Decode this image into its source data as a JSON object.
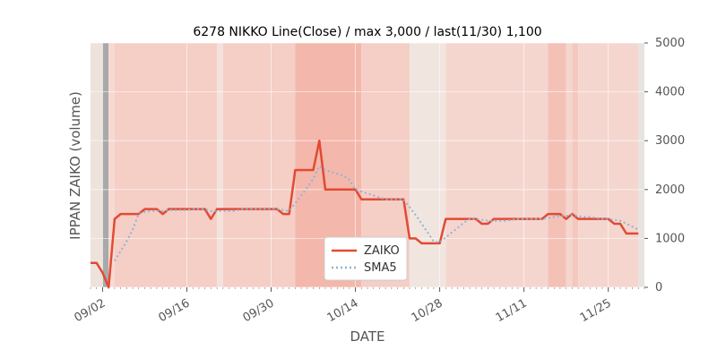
{
  "chart_data": {
    "type": "line",
    "title": "6278 NIKKO Line(Close) / max 3,000 / last(11/30) 1,100",
    "xlabel": "DATE",
    "ylabel": "IPPAN ZAIKO (volume)",
    "ylim": [
      0,
      5000
    ],
    "yticks": [
      "0",
      "1000",
      "2000",
      "3000",
      "4000",
      "5000"
    ],
    "y_axis_side": "right",
    "grid": true,
    "legend_position": "lower-center",
    "x_range": [
      "2024-08-31",
      "2024-12-01"
    ],
    "xticks": [
      {
        "date": "2024-09-02",
        "label": "09/02"
      },
      {
        "date": "2024-09-16",
        "label": "09/16"
      },
      {
        "date": "2024-09-30",
        "label": "09/30"
      },
      {
        "date": "2024-10-14",
        "label": "10/14"
      },
      {
        "date": "2024-10-28",
        "label": "10/28"
      },
      {
        "date": "2024-11-11",
        "label": "11/11"
      },
      {
        "date": "2024-11-25",
        "label": "11/25"
      }
    ],
    "series": [
      {
        "name": "ZAIKO",
        "color": "#e24a33",
        "style": "solid",
        "points": [
          [
            "2024-08-31",
            500
          ],
          [
            "2024-09-01",
            500
          ],
          [
            "2024-09-02",
            300
          ],
          [
            "2024-09-03",
            0
          ],
          [
            "2024-09-04",
            1400
          ],
          [
            "2024-09-05",
            1500
          ],
          [
            "2024-09-06",
            1500
          ],
          [
            "2024-09-07",
            1500
          ],
          [
            "2024-09-08",
            1500
          ],
          [
            "2024-09-09",
            1600
          ],
          [
            "2024-09-10",
            1600
          ],
          [
            "2024-09-11",
            1600
          ],
          [
            "2024-09-12",
            1500
          ],
          [
            "2024-09-13",
            1600
          ],
          [
            "2024-09-14",
            1600
          ],
          [
            "2024-09-15",
            1600
          ],
          [
            "2024-09-16",
            1600
          ],
          [
            "2024-09-17",
            1600
          ],
          [
            "2024-09-18",
            1600
          ],
          [
            "2024-09-19",
            1600
          ],
          [
            "2024-09-20",
            1400
          ],
          [
            "2024-09-21",
            1600
          ],
          [
            "2024-09-22",
            1600
          ],
          [
            "2024-09-23",
            1600
          ],
          [
            "2024-09-24",
            1600
          ],
          [
            "2024-09-25",
            1600
          ],
          [
            "2024-09-26",
            1600
          ],
          [
            "2024-09-27",
            1600
          ],
          [
            "2024-09-28",
            1600
          ],
          [
            "2024-09-29",
            1600
          ],
          [
            "2024-09-30",
            1600
          ],
          [
            "2024-10-01",
            1600
          ],
          [
            "2024-10-02",
            1500
          ],
          [
            "2024-10-03",
            1500
          ],
          [
            "2024-10-04",
            2400
          ],
          [
            "2024-10-05",
            2400
          ],
          [
            "2024-10-06",
            2400
          ],
          [
            "2024-10-07",
            2400
          ],
          [
            "2024-10-08",
            3000
          ],
          [
            "2024-10-09",
            2000
          ],
          [
            "2024-10-10",
            2000
          ],
          [
            "2024-10-11",
            2000
          ],
          [
            "2024-10-12",
            2000
          ],
          [
            "2024-10-13",
            2000
          ],
          [
            "2024-10-14",
            2000
          ],
          [
            "2024-10-15",
            1800
          ],
          [
            "2024-10-16",
            1800
          ],
          [
            "2024-10-17",
            1800
          ],
          [
            "2024-10-18",
            1800
          ],
          [
            "2024-10-19",
            1800
          ],
          [
            "2024-10-20",
            1800
          ],
          [
            "2024-10-21",
            1800
          ],
          [
            "2024-10-22",
            1800
          ],
          [
            "2024-10-23",
            1000
          ],
          [
            "2024-10-24",
            1000
          ],
          [
            "2024-10-25",
            900
          ],
          [
            "2024-10-26",
            900
          ],
          [
            "2024-10-27",
            900
          ],
          [
            "2024-10-28",
            900
          ],
          [
            "2024-10-29",
            1400
          ],
          [
            "2024-10-30",
            1400
          ],
          [
            "2024-10-31",
            1400
          ],
          [
            "2024-11-01",
            1400
          ],
          [
            "2024-11-02",
            1400
          ],
          [
            "2024-11-03",
            1400
          ],
          [
            "2024-11-04",
            1300
          ],
          [
            "2024-11-05",
            1300
          ],
          [
            "2024-11-06",
            1400
          ],
          [
            "2024-11-07",
            1400
          ],
          [
            "2024-11-08",
            1400
          ],
          [
            "2024-11-09",
            1400
          ],
          [
            "2024-11-10",
            1400
          ],
          [
            "2024-11-11",
            1400
          ],
          [
            "2024-11-12",
            1400
          ],
          [
            "2024-11-13",
            1400
          ],
          [
            "2024-11-14",
            1400
          ],
          [
            "2024-11-15",
            1500
          ],
          [
            "2024-11-16",
            1500
          ],
          [
            "2024-11-17",
            1500
          ],
          [
            "2024-11-18",
            1400
          ],
          [
            "2024-11-19",
            1500
          ],
          [
            "2024-11-20",
            1400
          ],
          [
            "2024-11-21",
            1400
          ],
          [
            "2024-11-22",
            1400
          ],
          [
            "2024-11-23",
            1400
          ],
          [
            "2024-11-24",
            1400
          ],
          [
            "2024-11-25",
            1400
          ],
          [
            "2024-11-26",
            1300
          ],
          [
            "2024-11-27",
            1300
          ],
          [
            "2024-11-28",
            1100
          ],
          [
            "2024-11-29",
            1100
          ],
          [
            "2024-11-30",
            1100
          ]
        ]
      },
      {
        "name": "SMA5",
        "color": "#8eb4d4",
        "style": "dotted",
        "points": [
          [
            "2024-09-04",
            540
          ],
          [
            "2024-09-05",
            740
          ],
          [
            "2024-09-06",
            940
          ],
          [
            "2024-09-07",
            1180
          ],
          [
            "2024-09-08",
            1500
          ],
          [
            "2024-09-09",
            1540
          ],
          [
            "2024-09-10",
            1560
          ],
          [
            "2024-09-11",
            1560
          ],
          [
            "2024-09-12",
            1560
          ],
          [
            "2024-09-13",
            1580
          ],
          [
            "2024-09-14",
            1580
          ],
          [
            "2024-09-15",
            1580
          ],
          [
            "2024-09-16",
            1580
          ],
          [
            "2024-09-17",
            1600
          ],
          [
            "2024-09-18",
            1600
          ],
          [
            "2024-09-19",
            1600
          ],
          [
            "2024-09-20",
            1560
          ],
          [
            "2024-09-21",
            1560
          ],
          [
            "2024-09-22",
            1560
          ],
          [
            "2024-09-23",
            1560
          ],
          [
            "2024-09-24",
            1560
          ],
          [
            "2024-09-25",
            1600
          ],
          [
            "2024-09-26",
            1600
          ],
          [
            "2024-09-27",
            1600
          ],
          [
            "2024-09-28",
            1600
          ],
          [
            "2024-09-29",
            1600
          ],
          [
            "2024-09-30",
            1600
          ],
          [
            "2024-10-01",
            1600
          ],
          [
            "2024-10-02",
            1580
          ],
          [
            "2024-10-03",
            1560
          ],
          [
            "2024-10-04",
            1720
          ],
          [
            "2024-10-05",
            1880
          ],
          [
            "2024-10-06",
            2040
          ],
          [
            "2024-10-07",
            2220
          ],
          [
            "2024-10-08",
            2480
          ],
          [
            "2024-10-09",
            2400
          ],
          [
            "2024-10-10",
            2360
          ],
          [
            "2024-10-11",
            2320
          ],
          [
            "2024-10-12",
            2280
          ],
          [
            "2024-10-13",
            2200
          ],
          [
            "2024-10-14",
            2000
          ],
          [
            "2024-10-15",
            1960
          ],
          [
            "2024-10-16",
            1920
          ],
          [
            "2024-10-17",
            1880
          ],
          [
            "2024-10-18",
            1840
          ],
          [
            "2024-10-19",
            1800
          ],
          [
            "2024-10-20",
            1800
          ],
          [
            "2024-10-21",
            1800
          ],
          [
            "2024-10-22",
            1800
          ],
          [
            "2024-10-23",
            1640
          ],
          [
            "2024-10-24",
            1480
          ],
          [
            "2024-10-25",
            1300
          ],
          [
            "2024-10-26",
            1120
          ],
          [
            "2024-10-27",
            940
          ],
          [
            "2024-10-28",
            920
          ],
          [
            "2024-10-29",
            1020
          ],
          [
            "2024-10-30",
            1120
          ],
          [
            "2024-10-31",
            1220
          ],
          [
            "2024-11-01",
            1320
          ],
          [
            "2024-11-02",
            1400
          ],
          [
            "2024-11-03",
            1400
          ],
          [
            "2024-11-04",
            1380
          ],
          [
            "2024-11-05",
            1360
          ],
          [
            "2024-11-06",
            1360
          ],
          [
            "2024-11-07",
            1360
          ],
          [
            "2024-11-08",
            1360
          ],
          [
            "2024-11-09",
            1380
          ],
          [
            "2024-11-10",
            1400
          ],
          [
            "2024-11-11",
            1400
          ],
          [
            "2024-11-12",
            1400
          ],
          [
            "2024-11-13",
            1400
          ],
          [
            "2024-11-14",
            1400
          ],
          [
            "2024-11-15",
            1420
          ],
          [
            "2024-11-16",
            1440
          ],
          [
            "2024-11-17",
            1460
          ],
          [
            "2024-11-18",
            1460
          ],
          [
            "2024-11-19",
            1480
          ],
          [
            "2024-11-20",
            1460
          ],
          [
            "2024-11-21",
            1440
          ],
          [
            "2024-11-22",
            1440
          ],
          [
            "2024-11-23",
            1420
          ],
          [
            "2024-11-24",
            1400
          ],
          [
            "2024-11-25",
            1400
          ],
          [
            "2024-11-26",
            1380
          ],
          [
            "2024-11-27",
            1360
          ],
          [
            "2024-11-28",
            1300
          ],
          [
            "2024-11-29",
            1240
          ],
          [
            "2024-11-30",
            1180
          ]
        ]
      }
    ],
    "background_bands": [
      {
        "start": "2024-08-31",
        "end": "2024-09-03",
        "color": "#ede2dc"
      },
      {
        "start": "2024-09-02",
        "end": "2024-09-03",
        "color": "#a9a9a9"
      },
      {
        "start": "2024-09-03",
        "end": "2024-09-04",
        "color": "#f6d9d3"
      },
      {
        "start": "2024-09-04",
        "end": "2024-09-21",
        "color": "#f5cec6"
      },
      {
        "start": "2024-09-21",
        "end": "2024-09-22",
        "color": "#f3e2dc"
      },
      {
        "start": "2024-09-22",
        "end": "2024-10-04",
        "color": "#f5cec6"
      },
      {
        "start": "2024-10-04",
        "end": "2024-10-15",
        "color": "#f4b7ab"
      },
      {
        "start": "2024-10-15",
        "end": "2024-10-23",
        "color": "#f5cec6"
      },
      {
        "start": "2024-10-23",
        "end": "2024-10-29",
        "color": "#f1e6df"
      },
      {
        "start": "2024-10-29",
        "end": "2024-11-15",
        "color": "#f5d6cf"
      },
      {
        "start": "2024-11-15",
        "end": "2024-11-18",
        "color": "#f4c1b7"
      },
      {
        "start": "2024-11-18",
        "end": "2024-11-19",
        "color": "#f5d6cf"
      },
      {
        "start": "2024-11-19",
        "end": "2024-11-20",
        "color": "#f4c8bf"
      },
      {
        "start": "2024-11-20",
        "end": "2024-11-30",
        "color": "#f5d6cf"
      },
      {
        "start": "2024-11-30",
        "end": "2024-12-01",
        "color": "#e6e3e1"
      }
    ],
    "legend": [
      {
        "label": "ZAIKO",
        "series": "ZAIKO"
      },
      {
        "label": "SMA5",
        "series": "SMA5"
      }
    ]
  }
}
